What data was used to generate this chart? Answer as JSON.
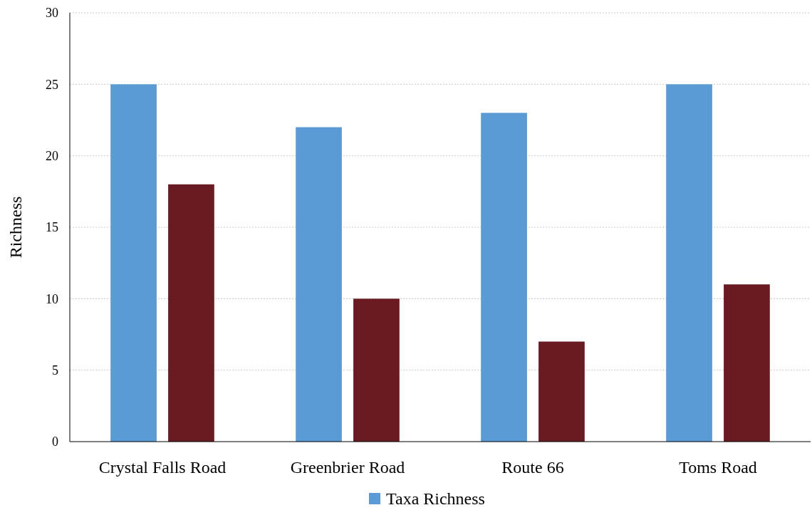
{
  "chart_data": {
    "type": "bar",
    "ylabel": "Richness",
    "categories": [
      "Crystal Falls Road",
      "Greenbrier Road",
      "Route 66",
      "Toms Road"
    ],
    "series": [
      {
        "name": "Taxa Richness",
        "color": "#5b9bd5",
        "values": [
          25,
          22,
          23,
          25
        ]
      },
      {
        "color": "#6a1a22",
        "values": [
          18,
          10,
          7,
          11
        ]
      }
    ],
    "ylim": [
      0,
      30
    ],
    "yticks": [
      0,
      5,
      10,
      15,
      20,
      25,
      30
    ],
    "grid": "y",
    "legend": "bottom"
  }
}
